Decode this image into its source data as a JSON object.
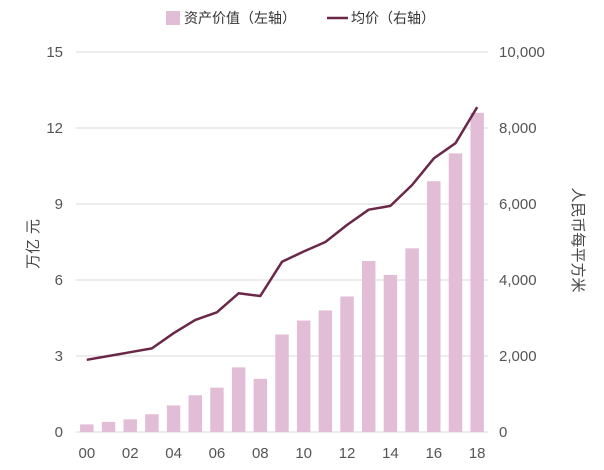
{
  "chart_data": {
    "type": "bar+line",
    "categories": [
      "00",
      "01",
      "02",
      "03",
      "04",
      "05",
      "06",
      "07",
      "08",
      "09",
      "10",
      "11",
      "12",
      "13",
      "14",
      "15",
      "16",
      "17",
      "18"
    ],
    "x_tick_labels": [
      "00",
      "02",
      "04",
      "06",
      "08",
      "10",
      "12",
      "14",
      "16",
      "18"
    ],
    "series": [
      {
        "name": "资产价值（左轴）",
        "type": "bar",
        "axis": "left",
        "color": "#e2bdd6",
        "values": [
          0.3,
          0.4,
          0.5,
          0.7,
          1.05,
          1.45,
          1.75,
          2.55,
          2.1,
          3.85,
          4.4,
          4.8,
          5.35,
          6.75,
          6.2,
          7.25,
          9.9,
          11.0,
          12.6
        ]
      },
      {
        "name": "均价（右轴）",
        "type": "line",
        "axis": "right",
        "color": "#6a2748",
        "values": [
          1900,
          2000,
          2100,
          2200,
          2600,
          2950,
          3150,
          3650,
          3580,
          4480,
          4750,
          5000,
          5450,
          5850,
          5950,
          6500,
          7200,
          7600,
          8550
        ]
      }
    ],
    "left_axis": {
      "title": "万亿 元",
      "ylim": [
        0,
        15
      ],
      "ticks": [
        "0",
        "3",
        "6",
        "9",
        "12",
        "15"
      ]
    },
    "right_axis": {
      "title": "人民币每平方米",
      "ylim": [
        0,
        10000
      ],
      "ticks": [
        "0",
        "2,000",
        "4,000",
        "6,000",
        "8,000",
        "10,000"
      ]
    },
    "grid": true,
    "legend_position": "top-center"
  },
  "legend": {
    "bar_label": "资产价值（左轴）",
    "line_label": "均价（右轴）"
  }
}
